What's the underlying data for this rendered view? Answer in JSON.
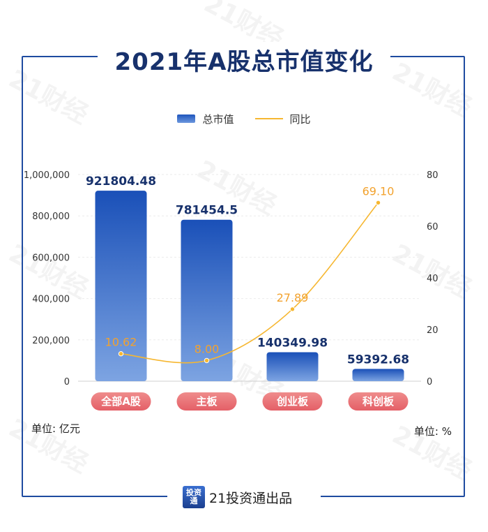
{
  "title": "2021年A股总市值变化",
  "legend": {
    "bar_label": "总市值",
    "line_label": "同比"
  },
  "unit_left": "单位: 亿元",
  "unit_right": "单位: %",
  "footer": {
    "logo_text": "投资通",
    "text": "21投资通出品"
  },
  "watermark_text": "21财经",
  "colors": {
    "title": "#17316c",
    "frame": "#1e4ba0",
    "bar_top": "#1a50b8",
    "bar_bottom": "#7da4e2",
    "line": "#f6b731",
    "line_label": "#f2a22e",
    "bar_label": "#17316c",
    "pill_top": "#ef8c8c",
    "pill_bottom": "#e45f67"
  },
  "chart_data": {
    "type": "bar",
    "categories": [
      "全部A股",
      "主板",
      "创业板",
      "科创板"
    ],
    "series": [
      {
        "name": "总市值",
        "type": "bar",
        "axis": "left",
        "values": [
          921804.48,
          781454.5,
          140349.98,
          59392.68
        ],
        "labels": [
          "921804.48",
          "781454.5",
          "140349.98",
          "59392.68"
        ]
      },
      {
        "name": "同比",
        "type": "line",
        "axis": "right",
        "values": [
          10.62,
          8.0,
          27.89,
          69.1
        ],
        "labels": [
          "10.62",
          "8.00",
          "27.89",
          "69.10"
        ]
      }
    ],
    "y_left": {
      "range": [
        0,
        1000000
      ],
      "ticks": [
        0,
        200000,
        400000,
        600000,
        800000,
        1000000
      ],
      "tick_labels": [
        "0",
        "200,000",
        "400,000",
        "600,000",
        "800,000",
        "1,000,000"
      ]
    },
    "y_right": {
      "range": [
        0,
        80
      ],
      "ticks": [
        0,
        20,
        40,
        60,
        80
      ],
      "tick_labels": [
        "0",
        "20",
        "40",
        "60",
        "80"
      ]
    },
    "legend_position": "top-center"
  }
}
